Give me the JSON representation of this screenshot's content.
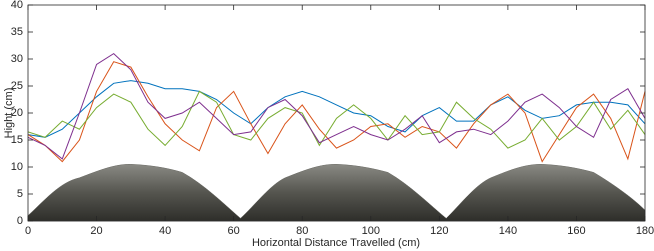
{
  "chart_data": {
    "type": "line",
    "xlabel": "Horizontal Distance Travelled (cm)",
    "ylabel": "Hight (cm)",
    "x": [
      0,
      5,
      10,
      15,
      20,
      25,
      30,
      35,
      40,
      45,
      50,
      55,
      60,
      65,
      70,
      75,
      80,
      85,
      90,
      95,
      100,
      105,
      110,
      115,
      120,
      125,
      130,
      135,
      140,
      145,
      150,
      155,
      160,
      165,
      170,
      175,
      180
    ],
    "series": [
      {
        "color": "#0072BD",
        "values": [
          16,
          15.5,
          17,
          20,
          23,
          25.5,
          26,
          25.5,
          24.5,
          24.5,
          24,
          22.5,
          20,
          18,
          21,
          23,
          24,
          23,
          21.5,
          20,
          19.5,
          17.5,
          16.5,
          19.5,
          21,
          18.5,
          18.5,
          21.5,
          23,
          20.5,
          19,
          19.5,
          21.5,
          22,
          22,
          21.5,
          18
        ]
      },
      {
        "color": "#D95319",
        "values": [
          16,
          14,
          11,
          15,
          24,
          29.5,
          28.5,
          23,
          18,
          15,
          13,
          21,
          24,
          18,
          12.5,
          18,
          21.5,
          17,
          13.5,
          15,
          17.5,
          18,
          15.5,
          17.5,
          16.5,
          13.5,
          18,
          21.5,
          23.5,
          20,
          11,
          16,
          21,
          23.5,
          19,
          11.5,
          24
        ]
      },
      {
        "color": "#77AC30",
        "values": [
          16.5,
          15.5,
          18.5,
          17,
          21,
          23.5,
          22,
          17,
          14,
          17.5,
          24,
          22,
          16,
          15,
          19,
          21,
          20,
          14,
          19,
          21.5,
          19,
          15,
          19.5,
          16,
          16.5,
          22,
          19,
          17,
          13.5,
          15,
          19,
          15,
          17.5,
          22,
          17,
          20.5,
          16
        ]
      },
      {
        "color": "#7E2F8E",
        "values": [
          15.5,
          14,
          11.5,
          20,
          29,
          31,
          28,
          22,
          19,
          20,
          22,
          19,
          16,
          16.5,
          21,
          22.5,
          19.5,
          14.5,
          16,
          17.5,
          16,
          15,
          17,
          19.5,
          14.5,
          16.5,
          17,
          16,
          18.5,
          22,
          23.5,
          21,
          17.5,
          15.5,
          22.5,
          24.5,
          19
        ]
      }
    ],
    "xlim": [
      0,
      180
    ],
    "xticks": [
      0,
      20,
      40,
      60,
      80,
      100,
      120,
      140,
      160,
      180
    ],
    "ylim": [
      0,
      40
    ],
    "yticks": [
      0,
      5,
      10,
      15,
      20,
      25,
      30,
      35,
      40
    ]
  }
}
